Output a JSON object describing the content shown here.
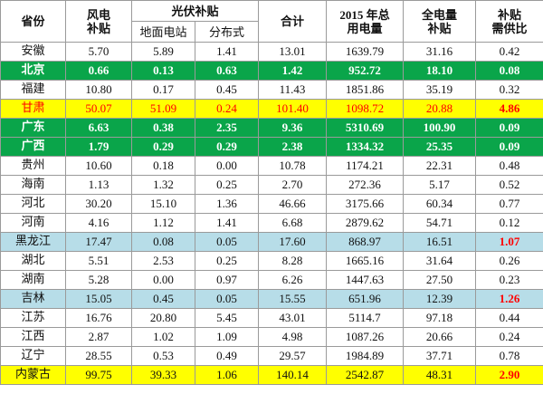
{
  "header": {
    "province": "省份",
    "wind": [
      "风电",
      "补贴"
    ],
    "pv": "光伏补贴",
    "pv_ground": "地面电站",
    "pv_distributed": "分布式",
    "total": "合计",
    "consumption": [
      "2015 年总",
      "用电量"
    ],
    "full_subsidy": [
      "全电量",
      "补贴"
    ],
    "ratio": [
      "补贴",
      "需供比"
    ]
  },
  "table": {
    "rows": [
      {
        "cells": [
          "安徽",
          "5.70",
          "5.89",
          "1.41",
          "13.01",
          "1639.79",
          "31.16",
          "0.42"
        ]
      },
      {
        "cells": [
          "北京",
          "0.66",
          "0.13",
          "0.63",
          "1.42",
          "952.72",
          "18.10",
          "0.08"
        ],
        "fill": "#0aa54a",
        "color": "#ffffff",
        "bold": true
      },
      {
        "cells": [
          "福建",
          "10.80",
          "0.17",
          "0.45",
          "11.43",
          "1851.86",
          "35.19",
          "0.32"
        ]
      },
      {
        "cells": [
          "甘肃",
          "50.07",
          "51.09",
          "0.24",
          "101.40",
          "1098.72",
          "20.88",
          "4.86"
        ],
        "fill": "#ffff00",
        "color": "#ff0000",
        "last_bold": true
      },
      {
        "cells": [
          "广东",
          "6.63",
          "0.38",
          "2.35",
          "9.36",
          "5310.69",
          "100.90",
          "0.09"
        ],
        "fill": "#0aa54a",
        "color": "#ffffff",
        "bold": true
      },
      {
        "cells": [
          "广西",
          "1.79",
          "0.29",
          "0.29",
          "2.38",
          "1334.32",
          "25.35",
          "0.09"
        ],
        "fill": "#0aa54a",
        "color": "#ffffff",
        "bold": true
      },
      {
        "cells": [
          "贵州",
          "10.60",
          "0.18",
          "0.00",
          "10.78",
          "1174.21",
          "22.31",
          "0.48"
        ]
      },
      {
        "cells": [
          "海南",
          "1.13",
          "1.32",
          "0.25",
          "2.70",
          "272.36",
          "5.17",
          "0.52"
        ]
      },
      {
        "cells": [
          "河北",
          "30.20",
          "15.10",
          "1.36",
          "46.66",
          "3175.66",
          "60.34",
          "0.77"
        ]
      },
      {
        "cells": [
          "河南",
          "4.16",
          "1.12",
          "1.41",
          "6.68",
          "2879.62",
          "54.71",
          "0.12"
        ]
      },
      {
        "cells": [
          "黑龙江",
          "17.47",
          "0.08",
          "0.05",
          "17.60",
          "868.97",
          "16.51",
          "1.07"
        ],
        "fill": "#b7dde8",
        "last_color": "#ff0000",
        "last_bold": true
      },
      {
        "cells": [
          "湖北",
          "5.51",
          "2.53",
          "0.25",
          "8.28",
          "1665.16",
          "31.64",
          "0.26"
        ]
      },
      {
        "cells": [
          "湖南",
          "5.28",
          "0.00",
          "0.97",
          "6.26",
          "1447.63",
          "27.50",
          "0.23"
        ]
      },
      {
        "cells": [
          "吉林",
          "15.05",
          "0.45",
          "0.05",
          "15.55",
          "651.96",
          "12.39",
          "1.26"
        ],
        "fill": "#b7dde8",
        "last_color": "#ff0000",
        "last_bold": true
      },
      {
        "cells": [
          "江苏",
          "16.76",
          "20.80",
          "5.45",
          "43.01",
          "5114.7",
          "97.18",
          "0.44"
        ]
      },
      {
        "cells": [
          "江西",
          "2.87",
          "1.02",
          "1.09",
          "4.98",
          "1087.26",
          "20.66",
          "0.24"
        ]
      },
      {
        "cells": [
          "辽宁",
          "28.55",
          "0.53",
          "0.49",
          "29.57",
          "1984.89",
          "37.71",
          "0.78"
        ]
      },
      {
        "cells": [
          "内蒙古",
          "99.75",
          "39.33",
          "1.06",
          "140.14",
          "2542.87",
          "48.31",
          "2.90"
        ],
        "fill": "#ffff00",
        "last_color": "#ff0000",
        "last_bold": true
      }
    ]
  }
}
